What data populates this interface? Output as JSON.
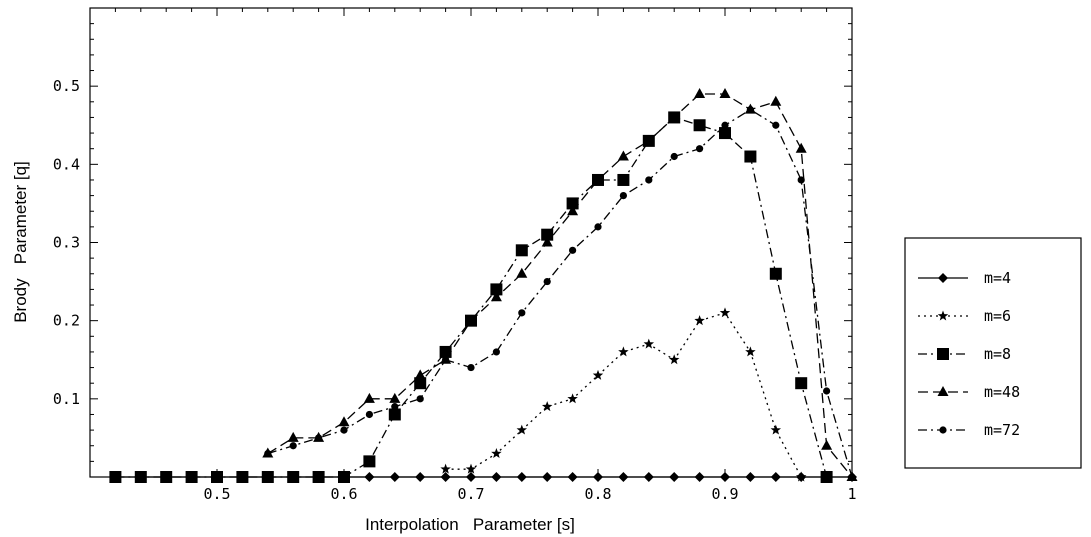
{
  "chart_data": {
    "type": "line",
    "title": "",
    "xlabel": "Interpolation   Parameter [s]",
    "ylabel": "Brody   Parameter [q]",
    "xlim": [
      0.4,
      1.0
    ],
    "ylim": [
      0.0,
      0.6
    ],
    "x_ticks": [
      0.5,
      0.6,
      0.7,
      0.8,
      0.9,
      1.0
    ],
    "x_tick_labels": [
      "0.5",
      "0.6",
      "0.7",
      "0.8",
      "0.9",
      "1"
    ],
    "y_ticks": [
      0.1,
      0.2,
      0.3,
      0.4,
      0.5
    ],
    "y_tick_labels": [
      "0.1",
      "0.2",
      "0.3",
      "0.4",
      "0.5"
    ],
    "grid": false,
    "legend_position": "right",
    "series": [
      {
        "name": "m=4",
        "marker": "diamond",
        "dash": "solid",
        "x": [
          0.42,
          0.44,
          0.46,
          0.48,
          0.5,
          0.52,
          0.54,
          0.56,
          0.58,
          0.6,
          0.62,
          0.64,
          0.66,
          0.68,
          0.7,
          0.72,
          0.74,
          0.76,
          0.78,
          0.8,
          0.82,
          0.84,
          0.86,
          0.88,
          0.9,
          0.92,
          0.94,
          0.96,
          0.98,
          1.0
        ],
        "y": [
          0,
          0,
          0,
          0,
          0,
          0,
          0,
          0,
          0,
          0,
          0,
          0,
          0,
          0,
          0,
          0,
          0,
          0,
          0,
          0,
          0,
          0,
          0,
          0,
          0,
          0,
          0,
          0,
          0,
          0
        ]
      },
      {
        "name": "m=6",
        "marker": "star",
        "dash": "dotted",
        "x": [
          0.68,
          0.7,
          0.72,
          0.74,
          0.76,
          0.78,
          0.8,
          0.82,
          0.84,
          0.86,
          0.88,
          0.9,
          0.92,
          0.94,
          0.96
        ],
        "y": [
          0.01,
          0.01,
          0.03,
          0.06,
          0.09,
          0.1,
          0.13,
          0.16,
          0.17,
          0.15,
          0.2,
          0.21,
          0.16,
          0.06,
          0.0
        ]
      },
      {
        "name": "m=8",
        "marker": "square",
        "dash": "dashdot",
        "x": [
          0.42,
          0.44,
          0.46,
          0.48,
          0.5,
          0.52,
          0.54,
          0.56,
          0.58,
          0.6,
          0.62,
          0.64,
          0.66,
          0.68,
          0.7,
          0.72,
          0.74,
          0.76,
          0.78,
          0.8,
          0.82,
          0.84,
          0.86,
          0.88,
          0.9,
          0.92,
          0.94,
          0.96,
          0.98
        ],
        "y": [
          0,
          0,
          0,
          0,
          0,
          0,
          0,
          0,
          0,
          0,
          0.02,
          0.08,
          0.12,
          0.16,
          0.2,
          0.24,
          0.29,
          0.31,
          0.35,
          0.38,
          0.38,
          0.43,
          0.46,
          0.45,
          0.44,
          0.41,
          0.26,
          0.12,
          0.0
        ]
      },
      {
        "name": "m=48",
        "marker": "triangle",
        "dash": "longdash",
        "x": [
          0.54,
          0.56,
          0.58,
          0.6,
          0.62,
          0.64,
          0.66,
          0.68,
          0.7,
          0.72,
          0.74,
          0.76,
          0.78,
          0.8,
          0.82,
          0.84,
          0.86,
          0.88,
          0.9,
          0.92,
          0.94,
          0.96,
          0.98,
          1.0
        ],
        "y": [
          0.03,
          0.05,
          0.05,
          0.07,
          0.1,
          0.1,
          0.13,
          0.15,
          0.2,
          0.23,
          0.26,
          0.3,
          0.34,
          0.38,
          0.41,
          0.43,
          0.46,
          0.49,
          0.49,
          0.47,
          0.48,
          0.42,
          0.04,
          0.0
        ]
      },
      {
        "name": "m=72",
        "marker": "circle",
        "dash": "dashdot",
        "x": [
          0.54,
          0.56,
          0.58,
          0.6,
          0.62,
          0.64,
          0.66,
          0.68,
          0.7,
          0.72,
          0.74,
          0.76,
          0.78,
          0.8,
          0.82,
          0.84,
          0.86,
          0.88,
          0.9,
          0.92,
          0.94,
          0.96,
          0.98,
          1.0
        ],
        "y": [
          0.03,
          0.04,
          0.05,
          0.06,
          0.08,
          0.09,
          0.1,
          0.15,
          0.14,
          0.16,
          0.21,
          0.25,
          0.29,
          0.32,
          0.36,
          0.38,
          0.41,
          0.42,
          0.45,
          0.47,
          0.45,
          0.38,
          0.11,
          0.0
        ]
      }
    ]
  }
}
